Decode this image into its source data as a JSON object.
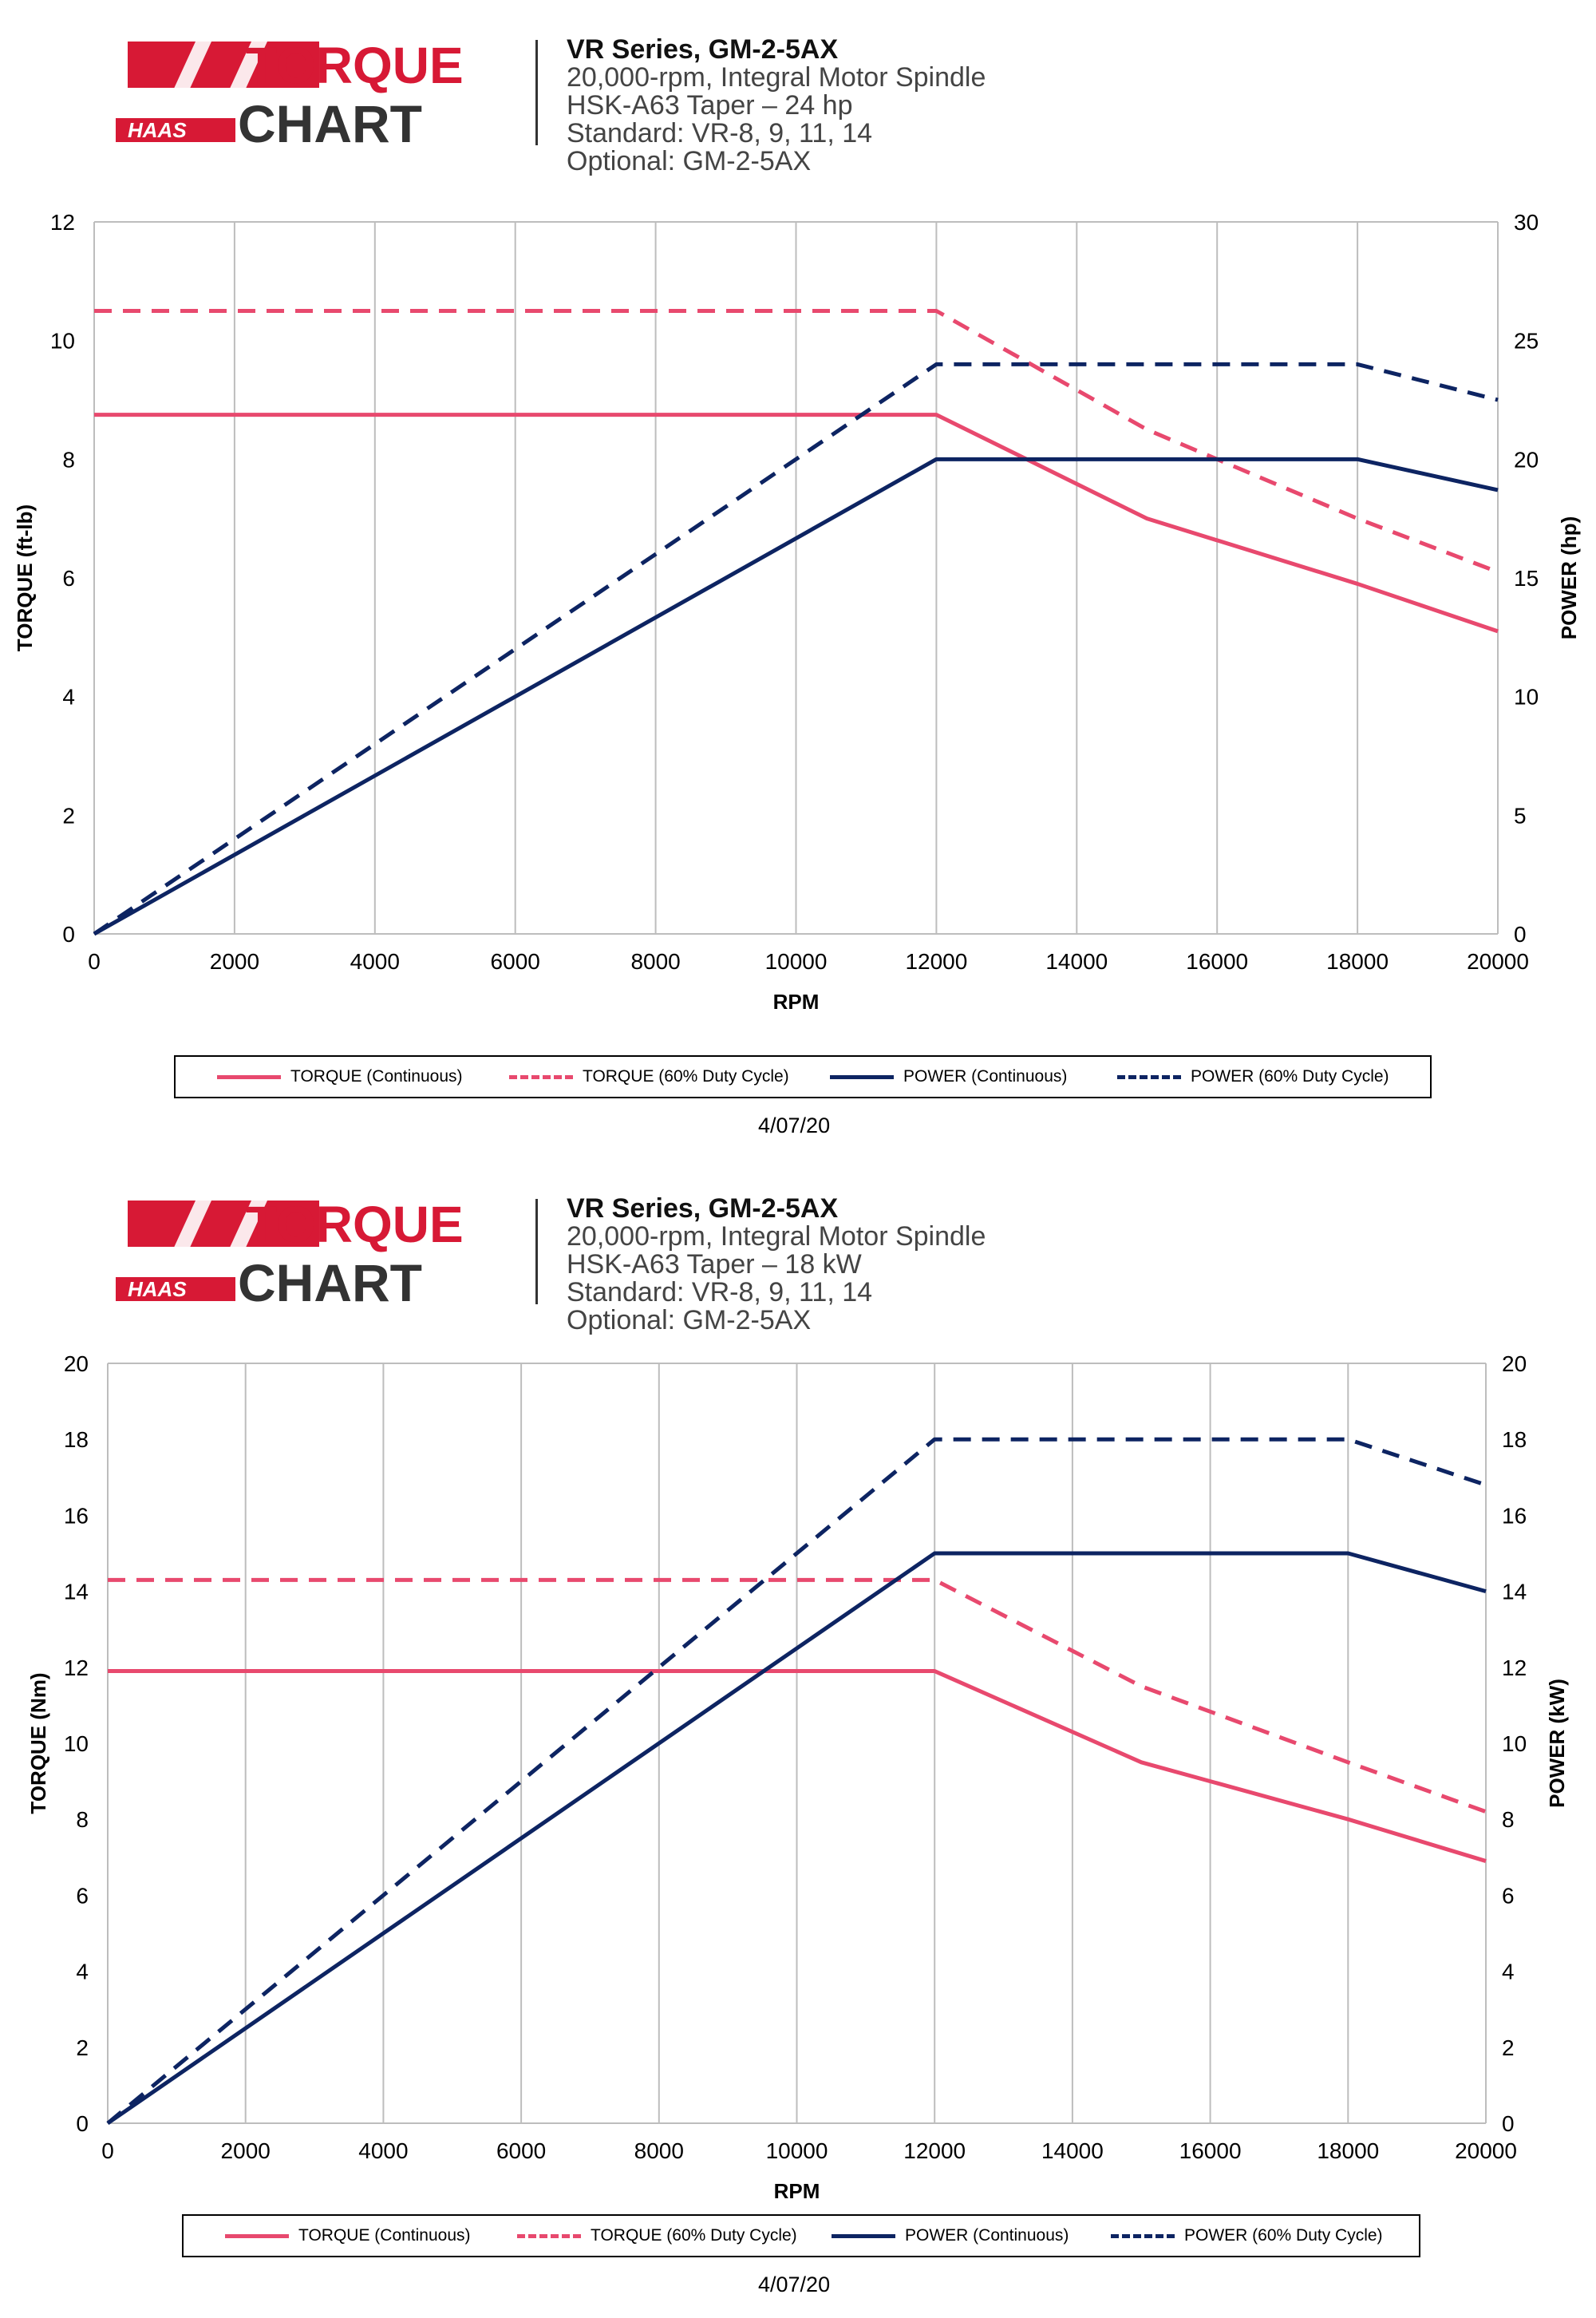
{
  "colors": {
    "torque": "#e8496e",
    "power": "#0d2462",
    "grid": "#bdbdbd",
    "logo_red": "#d71935",
    "logo_dark": "#333333"
  },
  "logo": {
    "torque_word": "TORQUE",
    "chart_word": "CHART",
    "haas_word": "HAAS"
  },
  "chart_data": [
    {
      "type": "line",
      "header": {
        "title": "VR Series, GM-2-5AX",
        "lines": [
          "20,000-rpm, Integral Motor Spindle",
          "HSK-A63 Taper – 24 hp",
          "Standard: VR-8, 9, 11, 14",
          "Optional: GM-2-5AX"
        ]
      },
      "xlabel": "RPM",
      "ylabel": "TORQUE (ft-lb)",
      "y2label": "POWER (hp)",
      "xlim": [
        0,
        20000
      ],
      "ylim": [
        0,
        12
      ],
      "y2lim": [
        0,
        30
      ],
      "xticks": [
        0,
        2000,
        4000,
        6000,
        8000,
        10000,
        12000,
        14000,
        16000,
        18000,
        20000
      ],
      "yticks": [
        0,
        2,
        4,
        6,
        8,
        10,
        12
      ],
      "y2ticks": [
        0,
        5,
        10,
        15,
        20,
        25,
        30
      ],
      "grid": "vertical",
      "series": [
        {
          "name": "TORQUE (Continuous)",
          "axis": "left",
          "style": "solid",
          "color": "#e8496e",
          "x": [
            0,
            12000,
            15000,
            18000,
            20000
          ],
          "y": [
            8.75,
            8.75,
            7.0,
            5.9,
            5.1
          ]
        },
        {
          "name": "TORQUE (60% Duty Cycle)",
          "axis": "left",
          "style": "dashed",
          "color": "#e8496e",
          "x": [
            0,
            12000,
            15000,
            18000,
            20000
          ],
          "y": [
            10.5,
            10.5,
            8.5,
            7.0,
            6.1
          ]
        },
        {
          "name": "POWER (Continuous)",
          "axis": "right",
          "style": "solid",
          "color": "#0d2462",
          "x": [
            0,
            12000,
            18000,
            20000
          ],
          "y": [
            0,
            20,
            20,
            18.7
          ]
        },
        {
          "name": "POWER (60% Duty Cycle)",
          "axis": "right",
          "style": "dashed",
          "color": "#0d2462",
          "x": [
            0,
            12000,
            18000,
            20000
          ],
          "y": [
            0,
            24,
            24,
            22.5
          ]
        }
      ],
      "legend": "bottom",
      "date": "4/07/20"
    },
    {
      "type": "line",
      "header": {
        "title": "VR Series, GM-2-5AX",
        "lines": [
          "20,000-rpm, Integral Motor Spindle",
          "HSK-A63 Taper – 18 kW",
          "Standard: VR-8, 9, 11, 14",
          "Optional: GM-2-5AX"
        ]
      },
      "xlabel": "RPM",
      "ylabel": "TORQUE (Nm)",
      "y2label": "POWER (kW)",
      "xlim": [
        0,
        20000
      ],
      "ylim": [
        0,
        20
      ],
      "y2lim": [
        0,
        20
      ],
      "xticks": [
        0,
        2000,
        4000,
        6000,
        8000,
        10000,
        12000,
        14000,
        16000,
        18000,
        20000
      ],
      "yticks": [
        0,
        2,
        4,
        6,
        8,
        10,
        12,
        14,
        16,
        18,
        20
      ],
      "y2ticks": [
        0,
        2,
        4,
        6,
        8,
        10,
        12,
        14,
        16,
        18,
        20
      ],
      "grid": "vertical",
      "series": [
        {
          "name": "TORQUE (Continuous)",
          "axis": "left",
          "style": "solid",
          "color": "#e8496e",
          "x": [
            0,
            12000,
            15000,
            18000,
            20000
          ],
          "y": [
            11.9,
            11.9,
            9.5,
            8.0,
            6.9
          ]
        },
        {
          "name": "TORQUE (60% Duty Cycle)",
          "axis": "left",
          "style": "dashed",
          "color": "#e8496e",
          "x": [
            0,
            12000,
            15000,
            18000,
            20000
          ],
          "y": [
            14.3,
            14.3,
            11.5,
            9.5,
            8.2
          ]
        },
        {
          "name": "POWER (Continuous)",
          "axis": "right",
          "style": "solid",
          "color": "#0d2462",
          "x": [
            0,
            12000,
            18000,
            20000
          ],
          "y": [
            0,
            15,
            15,
            14
          ]
        },
        {
          "name": "POWER (60% Duty Cycle)",
          "axis": "right",
          "style": "dashed",
          "color": "#0d2462",
          "x": [
            0,
            12000,
            18000,
            20000
          ],
          "y": [
            0,
            18,
            18,
            16.8
          ]
        }
      ],
      "legend": "bottom",
      "date": "4/07/20"
    }
  ]
}
